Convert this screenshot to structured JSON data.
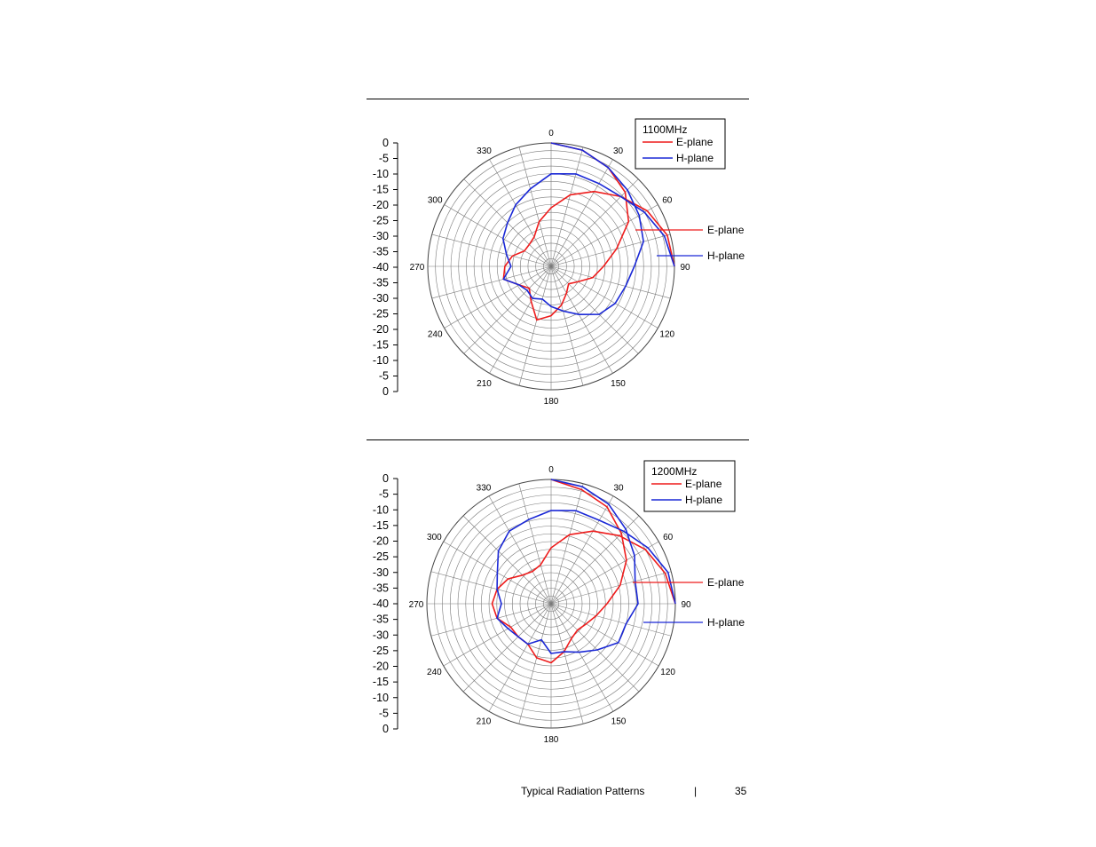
{
  "footer": {
    "section_title": "Typical Radiation Patterns",
    "separator": "|",
    "page_number": "35"
  },
  "colors": {
    "e_plane": "#ee1c1c",
    "h_plane": "#1a28d6",
    "grid": "#7a7a7a",
    "text": "#000000"
  },
  "chart_data": [
    {
      "type": "polar",
      "title": "1100MHz",
      "scale_labels": [
        "0",
        "-5",
        "-10",
        "-15",
        "-20",
        "-25",
        "-30",
        "-35",
        "-40",
        "-35",
        "-30",
        "-25",
        "-20",
        "-15",
        "-10",
        "-5",
        "0"
      ],
      "angle_labels": [
        "0",
        "30",
        "60",
        "90",
        "120",
        "150",
        "180",
        "210",
        "240",
        "270",
        "300",
        "330"
      ],
      "radial_range_db": [
        -40,
        0
      ],
      "grid": true,
      "legend": {
        "placement": "top-right",
        "entries": [
          "E-plane",
          "H-plane"
        ]
      },
      "annotations": [
        "E-plane",
        "H-plane"
      ],
      "angle_step_deg": 15,
      "series": [
        {
          "name": "E-plane",
          "color": "#ee1c1c",
          "values_db": [
            0,
            -1,
            -3,
            -6,
            -11,
            -18,
            -23,
            -26,
            -30,
            -32,
            -30,
            -27,
            -24,
            -22,
            -27,
            -30,
            -28,
            -24,
            -25,
            -27,
            -30,
            -30,
            -29,
            -25,
            -21,
            -16,
            -12,
            -8,
            -4,
            -1,
            0
          ]
        },
        {
          "name": "H-plane",
          "color": "#1a28d6",
          "values_db": [
            0,
            -1,
            -3,
            -5,
            -7,
            -9,
            -13,
            -15,
            -16,
            -18,
            -22,
            -25,
            -27,
            -29,
            -28,
            -29,
            -28,
            -24,
            -27,
            -25,
            -22,
            -20,
            -17,
            -14,
            -10,
            -9,
            -9,
            -8,
            -5,
            -2,
            0
          ]
        }
      ]
    },
    {
      "type": "polar",
      "title": "1200MHz",
      "scale_labels": [
        "0",
        "-5",
        "-10",
        "-15",
        "-20",
        "-25",
        "-30",
        "-35",
        "-40",
        "-35",
        "-30",
        "-25",
        "-20",
        "-15",
        "-10",
        "-5",
        "0"
      ],
      "angle_labels": [
        "0",
        "30",
        "60",
        "90",
        "120",
        "150",
        "180",
        "210",
        "240",
        "270",
        "300",
        "330"
      ],
      "radial_range_db": [
        -40,
        0
      ],
      "grid": true,
      "legend": {
        "placement": "top-right",
        "entries": [
          "E-plane",
          "H-plane"
        ]
      },
      "annotations": [
        "E-plane",
        "H-plane"
      ],
      "angle_step_deg": 15,
      "series": [
        {
          "name": "E-plane",
          "color": "#ee1c1c",
          "values_db": [
            0,
            -2,
            -4,
            -8,
            -12,
            -17,
            -22,
            -25,
            -27,
            -28,
            -27,
            -24,
            -21,
            -22,
            -25,
            -25,
            -25,
            -22,
            -21,
            -22,
            -24,
            -27,
            -28,
            -27,
            -22,
            -17,
            -13,
            -9,
            -5,
            -2,
            0
          ]
        },
        {
          "name": "H-plane",
          "color": "#1a28d6",
          "values_db": [
            0,
            -1,
            -3,
            -6,
            -9,
            -12,
            -12,
            -15,
            -15,
            -19,
            -22,
            -24,
            -24,
            -28,
            -25,
            -25,
            -24,
            -22,
            -24,
            -22,
            -20,
            -16,
            -13,
            -12,
            -10,
            -9,
            -9,
            -7,
            -4,
            -1,
            0
          ]
        }
      ]
    }
  ]
}
